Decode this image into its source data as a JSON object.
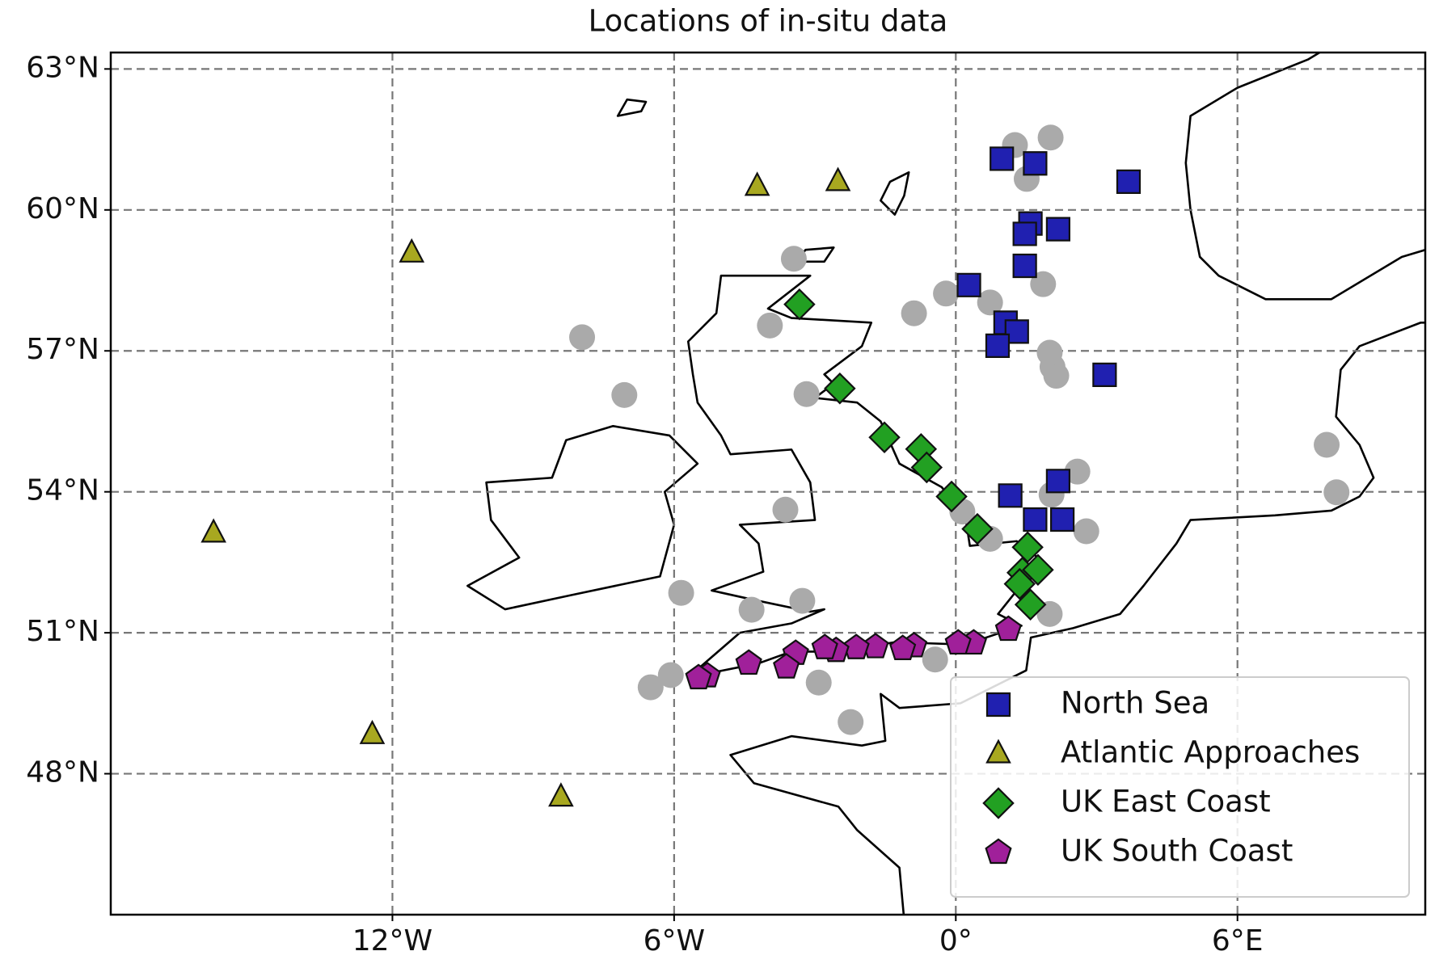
{
  "chart_data": {
    "type": "scatter",
    "title": "Locations of in-situ data",
    "xlim": [
      -18,
      10
    ],
    "ylim": [
      45,
      63.35
    ],
    "xticks": [
      {
        "value": -12,
        "label": "12°W"
      },
      {
        "value": -6,
        "label": "6°W"
      },
      {
        "value": 0,
        "label": "0°"
      },
      {
        "value": 6,
        "label": "6°E"
      }
    ],
    "yticks": [
      {
        "value": 48,
        "label": "48°N"
      },
      {
        "value": 51,
        "label": "51°N"
      },
      {
        "value": 54,
        "label": "54°N"
      },
      {
        "value": 57,
        "label": "57°N"
      },
      {
        "value": 60,
        "label": "60°N"
      },
      {
        "value": 63,
        "label": "63°N"
      }
    ],
    "grid": true,
    "legend": "lower right",
    "gray_points": {
      "color": "#aaaaaa",
      "x": [
        -7.96,
        -7.06,
        -0.89,
        2.02,
        2.06,
        2.14,
        2.0,
        -0.21,
        0.73,
        1.86,
        -5.85,
        -3.63,
        -2.92,
        -2.24,
        2.04,
        2.59,
        2.78,
        2.0,
        7.9,
        8.11,
        -6.5,
        -6.07,
        -3.45,
        1.26,
        1.51,
        0.14,
        0.73,
        -0.44,
        -3.18,
        -3.96,
        -4.35,
        -3.27
      ],
      "y": [
        57.29,
        56.06,
        57.8,
        61.54,
        56.66,
        56.47,
        56.96,
        58.22,
        58.03,
        58.42,
        51.85,
        53.62,
        49.94,
        49.1,
        53.94,
        54.43,
        53.16,
        51.4,
        55.0,
        53.99,
        49.84,
        50.1,
        58.96,
        61.38,
        60.66,
        53.58,
        53.0,
        50.43,
        56.08,
        57.54,
        51.49,
        51.68
      ]
    },
    "series": [
      {
        "name": "North Sea",
        "color": "#2020b0",
        "marker": "square",
        "x": [
          0.98,
          1.69,
          3.68,
          1.59,
          1.47,
          2.18,
          1.47,
          0.28,
          1.06,
          1.3,
          0.89,
          3.17,
          2.18,
          1.16,
          1.69,
          2.27
        ],
        "y": [
          61.09,
          60.99,
          60.6,
          59.71,
          59.49,
          59.59,
          58.81,
          58.4,
          57.6,
          57.41,
          57.11,
          56.49,
          54.23,
          53.92,
          53.41,
          53.41
        ]
      },
      {
        "name": "Atlantic Approaches",
        "color": "#a8a820",
        "marker": "triangle",
        "x": [
          -4.23,
          -2.51,
          -11.59,
          -15.81,
          -12.43,
          -8.41
        ],
        "y": [
          60.5,
          60.6,
          59.08,
          53.12,
          48.83,
          47.5
        ]
      },
      {
        "name": "UK East Coast",
        "color": "#22a022",
        "marker": "diamond",
        "x": [
          -3.33,
          -2.47,
          -1.52,
          -0.74,
          -0.62,
          -0.09,
          0.46,
          1.53,
          1.42,
          1.75,
          1.36,
          1.59
        ],
        "y": [
          57.99,
          56.2,
          55.16,
          54.91,
          54.52,
          53.9,
          53.21,
          52.82,
          52.28,
          52.34,
          52.04,
          51.6
        ]
      },
      {
        "name": "UK South Coast",
        "color": "#a0209a",
        "marker": "pentagon",
        "x": [
          1.12,
          0.38,
          0.05,
          -0.89,
          -1.13,
          -1.71,
          -2.12,
          -2.55,
          -2.79,
          -3.41,
          -3.61,
          -4.41,
          -5.29,
          -5.48
        ],
        "y": [
          51.07,
          50.78,
          50.78,
          50.72,
          50.66,
          50.7,
          50.68,
          50.62,
          50.68,
          50.56,
          50.27,
          50.35,
          50.08,
          50.04
        ]
      }
    ]
  }
}
